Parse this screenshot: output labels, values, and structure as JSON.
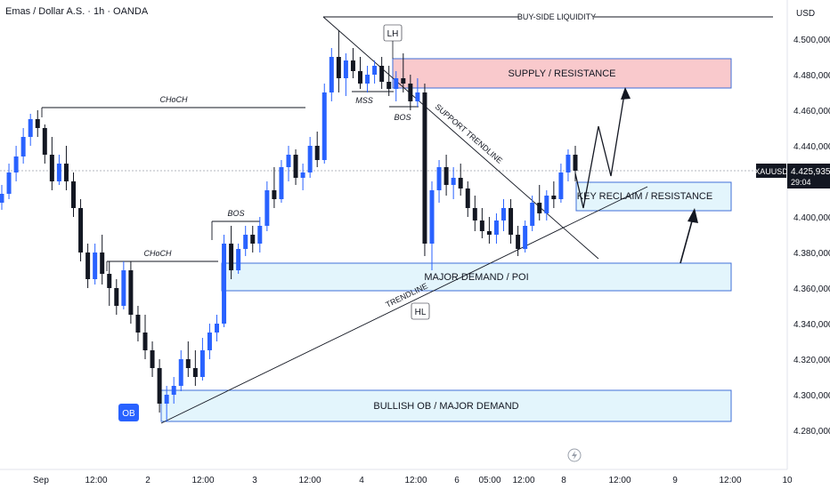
{
  "header": {
    "title": "Emas / Dollar A.S. · 1h · OANDA"
  },
  "axis": {
    "currency": "USD",
    "price_ticks": [
      "4.500,000",
      "4.480,000",
      "4.460,000",
      "4.440,000",
      "4.420,000",
      "4.400,000",
      "4.380,000",
      "4.360,000",
      "4.340,000",
      "4.320,000",
      "4.300,000",
      "4.280,000"
    ],
    "price_tick_values": [
      4500,
      4480,
      4460,
      4440,
      4420,
      4400,
      4380,
      4360,
      4340,
      4320,
      4300,
      4280
    ],
    "time_ticks": [
      "Sep",
      "12:00",
      "2",
      "12:00",
      "3",
      "12:00",
      "4",
      "12:00",
      "6",
      "05:00",
      "12:00",
      "8",
      "12:00",
      "9",
      "12:00",
      "10"
    ]
  },
  "price_tag": {
    "symbol": "XAUUSD",
    "price": "4.425,935",
    "countdown": "29:04",
    "value": 4425.9
  },
  "annotations": {
    "buy_side_liquidity": "BUY-SIDE LIQUIDITY",
    "lh": "LH",
    "hl": "HL",
    "ob": "OB",
    "mss": "MSS",
    "bos_top": "BOS",
    "bos_mid": "BOS",
    "choch_top": "CHoCH",
    "choch_mid": "CHoCH",
    "support_trendline": "SUPPORT TRENDLINE",
    "trendline": "TRENDLINE"
  },
  "zones": {
    "supply": "SUPPLY / RESISTANCE",
    "key_reclaim": "KEY RECLAIM / RESISTANCE",
    "major_demand": "MAJOR DEMAND / POI",
    "bullish_ob": "BULLISH OB / MAJOR DEMAND"
  },
  "colors": {
    "up": "#2962ff",
    "down": "#131722",
    "supply_fill": "#f9c9cc",
    "demand_fill": "#e3f5fc",
    "zone_border": "#3f6fd8"
  },
  "chart_data": {
    "type": "candlestick",
    "symbol": "XAUUSD",
    "timeframe": "1h",
    "ylim": [
      4275,
      4515
    ],
    "candles": [
      [
        4408,
        4418,
        4404,
        4413
      ],
      [
        4413,
        4430,
        4410,
        4425
      ],
      [
        4425,
        4440,
        4420,
        4434
      ],
      [
        4434,
        4450,
        4430,
        4445
      ],
      [
        4445,
        4458,
        4440,
        4455
      ],
      [
        4455,
        4460,
        4445,
        4450
      ],
      [
        4450,
        4452,
        4430,
        4435
      ],
      [
        4435,
        4445,
        4415,
        4420
      ],
      [
        4420,
        4435,
        4418,
        4430
      ],
      [
        4430,
        4440,
        4415,
        4420
      ],
      [
        4420,
        4425,
        4400,
        4405
      ],
      [
        4405,
        4410,
        4375,
        4380
      ],
      [
        4380,
        4385,
        4360,
        4365
      ],
      [
        4365,
        4385,
        4362,
        4380
      ],
      [
        4380,
        4390,
        4362,
        4368
      ],
      [
        4368,
        4375,
        4350,
        4360
      ],
      [
        4360,
        4365,
        4345,
        4350
      ],
      [
        4350,
        4375,
        4348,
        4370
      ],
      [
        4370,
        4375,
        4340,
        4345
      ],
      [
        4345,
        4350,
        4330,
        4335
      ],
      [
        4335,
        4345,
        4320,
        4325
      ],
      [
        4325,
        4330,
        4310,
        4315
      ],
      [
        4315,
        4320,
        4290,
        4295
      ],
      [
        4295,
        4305,
        4285,
        4300
      ],
      [
        4300,
        4310,
        4295,
        4305
      ],
      [
        4305,
        4325,
        4302,
        4320
      ],
      [
        4320,
        4330,
        4310,
        4315
      ],
      [
        4315,
        4325,
        4305,
        4310
      ],
      [
        4310,
        4332,
        4308,
        4325
      ],
      [
        4325,
        4340,
        4320,
        4335
      ],
      [
        4335,
        4345,
        4330,
        4340
      ],
      [
        4340,
        4390,
        4338,
        4385
      ],
      [
        4385,
        4395,
        4365,
        4370
      ],
      [
        4370,
        4385,
        4368,
        4382
      ],
      [
        4382,
        4395,
        4378,
        4390
      ],
      [
        4390,
        4395,
        4380,
        4385
      ],
      [
        4385,
        4400,
        4380,
        4395
      ],
      [
        4395,
        4420,
        4392,
        4415
      ],
      [
        4415,
        4428,
        4405,
        4410
      ],
      [
        4410,
        4432,
        4408,
        4428
      ],
      [
        4428,
        4440,
        4420,
        4435
      ],
      [
        4435,
        4438,
        4418,
        4422
      ],
      [
        4422,
        4430,
        4415,
        4425
      ],
      [
        4425,
        4445,
        4422,
        4440
      ],
      [
        4440,
        4448,
        4428,
        4432
      ],
      [
        4432,
        4475,
        4430,
        4470
      ],
      [
        4470,
        4495,
        4465,
        4490
      ],
      [
        4490,
        4505,
        4470,
        4478
      ],
      [
        4478,
        4492,
        4468,
        4488
      ],
      [
        4488,
        4495,
        4478,
        4482
      ],
      [
        4482,
        4490,
        4472,
        4475
      ],
      [
        4475,
        4485,
        4470,
        4480
      ],
      [
        4480,
        4488,
        4475,
        4485
      ],
      [
        4485,
        4490,
        4472,
        4476
      ],
      [
        4476,
        4485,
        4468,
        4472
      ],
      [
        4472,
        4482,
        4465,
        4478
      ],
      [
        4478,
        4492,
        4470,
        4475
      ],
      [
        4475,
        4480,
        4460,
        4465
      ],
      [
        4465,
        4478,
        4462,
        4470
      ],
      [
        4470,
        4475,
        4378,
        4385
      ],
      [
        4385,
        4420,
        4370,
        4415
      ],
      [
        4415,
        4432,
        4408,
        4428
      ],
      [
        4428,
        4435,
        4412,
        4418
      ],
      [
        4418,
        4428,
        4410,
        4422
      ],
      [
        4422,
        4430,
        4412,
        4416
      ],
      [
        4416,
        4420,
        4400,
        4405
      ],
      [
        4405,
        4412,
        4392,
        4398
      ],
      [
        4398,
        4405,
        4388,
        4392
      ],
      [
        4392,
        4400,
        4385,
        4390
      ],
      [
        4390,
        4402,
        4385,
        4398
      ],
      [
        4398,
        4410,
        4392,
        4405
      ],
      [
        4405,
        4410,
        4385,
        4390
      ],
      [
        4390,
        4395,
        4378,
        4382
      ],
      [
        4382,
        4398,
        4380,
        4395
      ],
      [
        4395,
        4412,
        4392,
        4408
      ],
      [
        4408,
        4418,
        4398,
        4402
      ],
      [
        4402,
        4415,
        4398,
        4412
      ],
      [
        4412,
        4420,
        4405,
        4410
      ],
      [
        4410,
        4430,
        4408,
        4425
      ],
      [
        4425,
        4438,
        4420,
        4435
      ],
      [
        4435,
        4440,
        4420,
        4426
      ]
    ]
  }
}
